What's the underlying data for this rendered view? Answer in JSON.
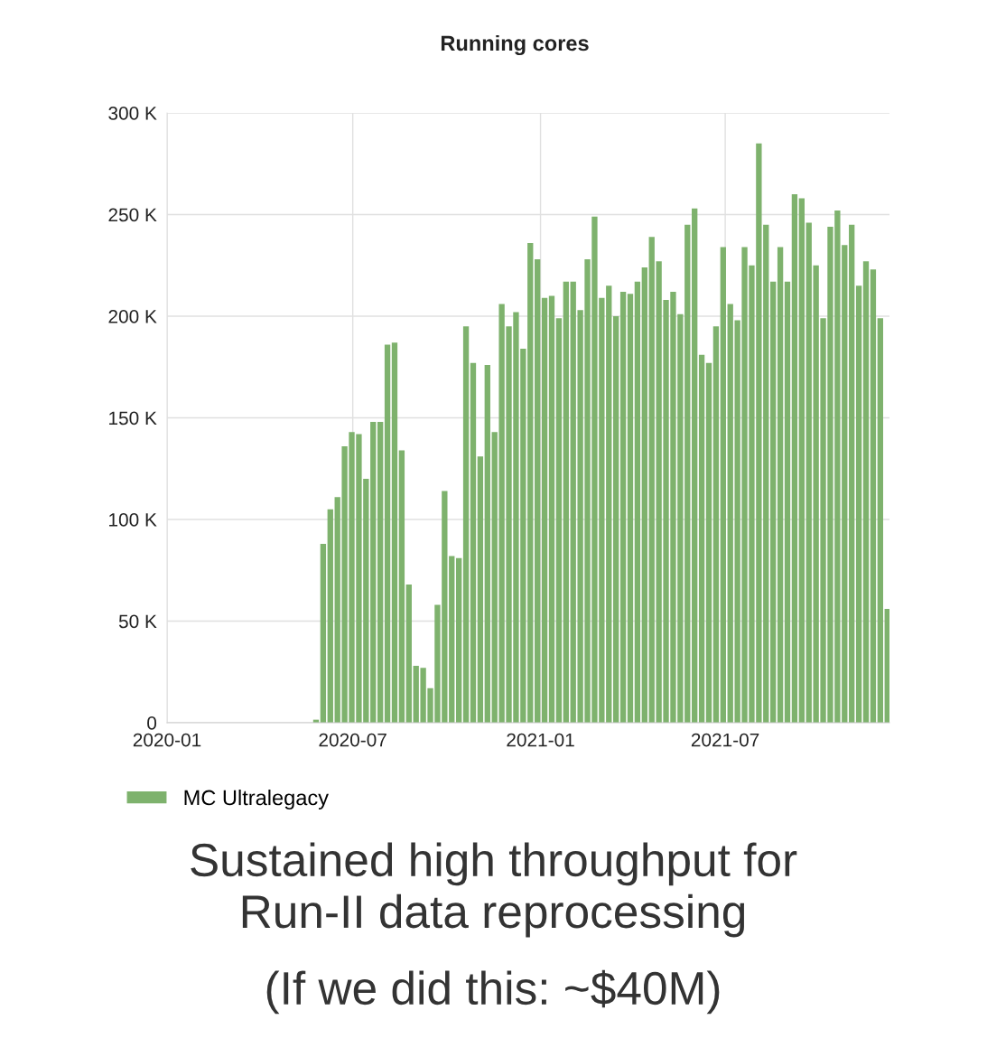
{
  "chart_data": {
    "type": "bar",
    "title": "Running cores",
    "x": [
      "2020-05-26",
      "2020-06-02",
      "2020-06-09",
      "2020-06-16",
      "2020-06-23",
      "2020-06-30",
      "2020-07-07",
      "2020-07-14",
      "2020-07-21",
      "2020-07-28",
      "2020-08-04",
      "2020-08-11",
      "2020-08-18",
      "2020-08-25",
      "2020-09-01",
      "2020-09-08",
      "2020-09-15",
      "2020-09-22",
      "2020-09-29",
      "2020-10-06",
      "2020-10-13",
      "2020-10-20",
      "2020-10-27",
      "2020-11-03",
      "2020-11-10",
      "2020-11-17",
      "2020-11-24",
      "2020-12-01",
      "2020-12-08",
      "2020-12-15",
      "2020-12-22",
      "2020-12-29",
      "2021-01-05",
      "2021-01-12",
      "2021-01-19",
      "2021-01-26",
      "2021-02-02",
      "2021-02-09",
      "2021-02-16",
      "2021-02-23",
      "2021-03-02",
      "2021-03-09",
      "2021-03-16",
      "2021-03-23",
      "2021-03-30",
      "2021-04-06",
      "2021-04-13",
      "2021-04-20",
      "2021-04-27",
      "2021-05-04",
      "2021-05-11",
      "2021-05-18",
      "2021-05-25",
      "2021-06-01",
      "2021-06-08",
      "2021-06-15",
      "2021-06-22",
      "2021-06-29",
      "2021-07-06",
      "2021-07-13",
      "2021-07-20",
      "2021-07-27",
      "2021-08-03",
      "2021-08-10",
      "2021-08-17",
      "2021-08-24",
      "2021-08-31",
      "2021-09-07",
      "2021-09-14",
      "2021-09-21",
      "2021-09-28",
      "2021-10-05",
      "2021-10-12",
      "2021-10-19",
      "2021-10-26",
      "2021-11-02",
      "2021-11-09",
      "2021-11-16",
      "2021-11-23",
      "2021-11-30",
      "2021-12-07"
    ],
    "series": [
      {
        "name": "MC Ultralegacy",
        "color": "#7eb26d",
        "values": [
          1500,
          88000,
          105000,
          111000,
          136000,
          143000,
          142000,
          120000,
          148000,
          148000,
          186000,
          187000,
          134000,
          68000,
          28000,
          27000,
          17000,
          58000,
          114000,
          82000,
          81000,
          195000,
          177000,
          131000,
          176000,
          143000,
          206000,
          195000,
          202000,
          184000,
          236000,
          228000,
          209000,
          210000,
          199000,
          217000,
          217000,
          203000,
          228000,
          249000,
          209000,
          215000,
          200000,
          212000,
          211000,
          217000,
          224000,
          239000,
          227000,
          208000,
          212000,
          201000,
          245000,
          253000,
          181000,
          177000,
          195000,
          234000,
          206000,
          198000,
          234000,
          225000,
          285000,
          245000,
          217000,
          234000,
          217000,
          260000,
          258000,
          246000,
          225000,
          199000,
          244000,
          252000,
          235000,
          245000,
          215000,
          227000,
          223000,
          199000,
          56000
        ]
      }
    ],
    "xlim": [
      "2020-01-01",
      "2021-12-09"
    ],
    "xticks": [
      {
        "value": "2020-01-01",
        "label": "2020-01"
      },
      {
        "value": "2020-07-01",
        "label": "2020-07"
      },
      {
        "value": "2021-01-01",
        "label": "2021-01"
      },
      {
        "value": "2021-07-01",
        "label": "2021-07"
      }
    ],
    "ylim": [
      0,
      300000
    ],
    "yticks": [
      {
        "value": 0,
        "label": "0"
      },
      {
        "value": 50000,
        "label": "50 K"
      },
      {
        "value": 100000,
        "label": "100 K"
      },
      {
        "value": 150000,
        "label": "150 K"
      },
      {
        "value": 200000,
        "label": "200 K"
      },
      {
        "value": 250000,
        "label": "250 K"
      },
      {
        "value": 300000,
        "label": "300 K"
      }
    ],
    "grid": true,
    "legend": "bottom left",
    "annotations": [
      "Sustained high throughput for\nRun-II data reprocessing",
      "(If we did this: ~$40M)"
    ]
  }
}
